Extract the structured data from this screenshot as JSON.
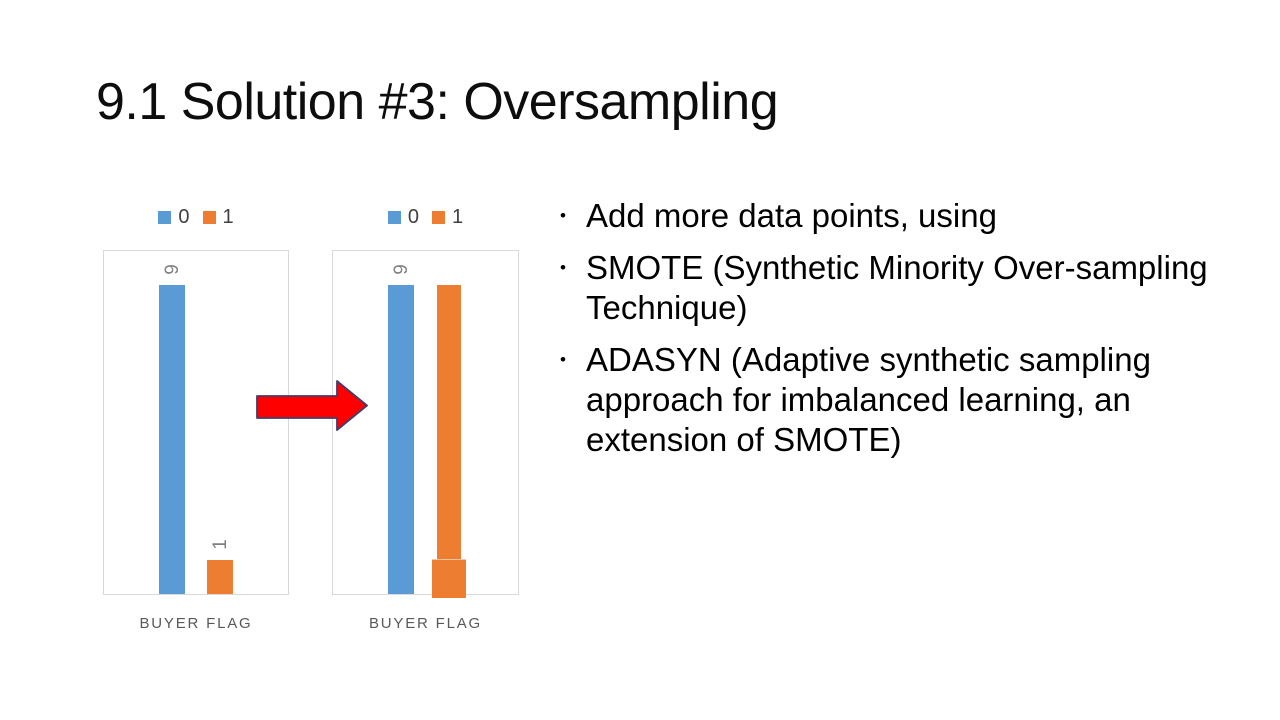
{
  "slide": {
    "title": "9.1 Solution #3: Oversampling",
    "bullet_char": "•"
  },
  "bullets": [
    "Add more data points, using",
    "SMOTE (Synthetic Minority Over-sampling Technique)",
    "ADASYN (Adaptive synthetic sampling approach for imbalanced learning, an extension of SMOTE)"
  ],
  "colors": {
    "series_0_blue": "#5B9BD5",
    "series_1_orange": "#ED7D31",
    "arrow_fill": "#FF0000",
    "arrow_outline": "#3E3E6B",
    "plot_border": "#D9D9D9",
    "data_label_gray": "#7F7F7F",
    "legend_text_gray": "#404040",
    "axis_label_gray": "#595959"
  },
  "chart_data": [
    {
      "type": "bar",
      "name": "before-oversampling",
      "categories": [
        "BUYER FLAG"
      ],
      "series": [
        {
          "name": "0",
          "values": [
            9
          ],
          "color": "#5B9BD5"
        },
        {
          "name": "1",
          "values": [
            1
          ],
          "color": "#ED7D31"
        }
      ],
      "data_labels": [
        "9",
        "1"
      ],
      "legend": [
        "0",
        "1"
      ],
      "legend_position": "top",
      "xlabel": "BUYER FLAG",
      "ylim": [
        0,
        10
      ],
      "grid": false
    },
    {
      "type": "bar",
      "name": "after-oversampling",
      "categories": [
        "BUYER FLAG"
      ],
      "series": [
        {
          "name": "0",
          "values": [
            9
          ],
          "color": "#5B9BD5"
        },
        {
          "name": "1",
          "values": [
            9
          ],
          "color": "#ED7D31"
        }
      ],
      "overlay": {
        "series": "1",
        "value": 1,
        "note": "original short minority bar drawn slightly wider beneath the oversampled bar"
      },
      "data_labels": [
        "9",
        ""
      ],
      "legend": [
        "0",
        "1"
      ],
      "legend_position": "top",
      "xlabel": "BUYER FLAG",
      "ylim": [
        0,
        10
      ],
      "grid": false
    }
  ]
}
